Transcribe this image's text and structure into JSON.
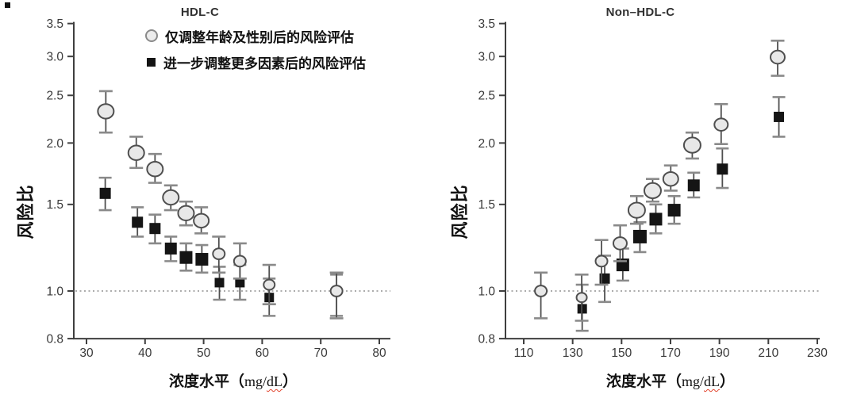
{
  "figure": {
    "background": "#ffffff",
    "accent_wavy_underline_color": "#e2442e"
  },
  "axes": {
    "y_label": "风险比",
    "x_caption_cjk": "浓度水平（",
    "x_caption_latin": "mg/",
    "x_caption_wavy": "dL",
    "x_caption_suffix": "）"
  },
  "legend": {
    "items": [
      {
        "marker": "circle",
        "label": "仅调整年龄及性别后的风险评估"
      },
      {
        "marker": "square",
        "label": "进一步调整更多因素后的风险评估"
      }
    ]
  },
  "chart_data": [
    {
      "type": "scatter",
      "title": "HDL-C",
      "xlabel": "浓度水平（mg/dL）",
      "ylabel": "风险比",
      "y_scale": "log",
      "x_ticks": [
        30,
        40,
        50,
        60,
        70,
        80
      ],
      "y_ticks": [
        3.5,
        3.0,
        2.5,
        2.0,
        1.5,
        1.0,
        0.8
      ],
      "xlim": [
        28,
        82
      ],
      "ylim": [
        0.8,
        3.5
      ],
      "ref_line": 1.0,
      "legend_position": "top-left-inside",
      "grid": false,
      "series": [
        {
          "name": "仅调整年龄及性别后的风险评估",
          "marker": "circle",
          "fill": "#e8e8e8",
          "stroke": "#4f4f4f",
          "points": [
            {
              "x": 33.3,
              "y": 2.32,
              "lo": 2.1,
              "hi": 2.55,
              "size": 20
            },
            {
              "x": 38.5,
              "y": 1.91,
              "lo": 1.78,
              "hi": 2.06,
              "size": 20
            },
            {
              "x": 41.7,
              "y": 1.77,
              "lo": 1.66,
              "hi": 1.9,
              "size": 20
            },
            {
              "x": 44.4,
              "y": 1.55,
              "lo": 1.46,
              "hi": 1.64,
              "size": 20
            },
            {
              "x": 47.0,
              "y": 1.44,
              "lo": 1.36,
              "hi": 1.52,
              "size": 20
            },
            {
              "x": 49.6,
              "y": 1.39,
              "lo": 1.31,
              "hi": 1.48,
              "size": 19
            },
            {
              "x": 52.6,
              "y": 1.19,
              "lo": 1.09,
              "hi": 1.29,
              "size": 15
            },
            {
              "x": 56.2,
              "y": 1.15,
              "lo": 1.06,
              "hi": 1.25,
              "size": 15
            },
            {
              "x": 61.2,
              "y": 1.03,
              "lo": 0.94,
              "hi": 1.13,
              "size": 14
            },
            {
              "x": 72.7,
              "y": 1.0,
              "lo": 0.88,
              "hi": 1.09,
              "size": 15
            }
          ]
        },
        {
          "name": "进一步调整更多因素后的风险评估",
          "marker": "square",
          "fill": "#151515",
          "stroke": "#151515",
          "points": [
            {
              "x": 33.2,
              "y": 1.58,
              "lo": 1.46,
              "hi": 1.7,
              "size": 14
            },
            {
              "x": 38.7,
              "y": 1.38,
              "lo": 1.29,
              "hi": 1.48,
              "size": 14
            },
            {
              "x": 41.7,
              "y": 1.34,
              "lo": 1.25,
              "hi": 1.43,
              "size": 14
            },
            {
              "x": 44.4,
              "y": 1.22,
              "lo": 1.15,
              "hi": 1.29,
              "size": 15
            },
            {
              "x": 47.0,
              "y": 1.17,
              "lo": 1.1,
              "hi": 1.25,
              "size": 16
            },
            {
              "x": 49.7,
              "y": 1.16,
              "lo": 1.09,
              "hi": 1.24,
              "size": 16
            },
            {
              "x": 52.7,
              "y": 1.04,
              "lo": 0.96,
              "hi": 1.12,
              "size": 12
            },
            {
              "x": 56.2,
              "y": 1.04,
              "lo": 0.96,
              "hi": 1.13,
              "size": 12
            },
            {
              "x": 61.2,
              "y": 0.97,
              "lo": 0.89,
              "hi": 1.06,
              "size": 12
            },
            {
              "x": 72.7,
              "y": 1.0,
              "lo": 0.89,
              "hi": 1.08,
              "size": 9
            }
          ]
        }
      ]
    },
    {
      "type": "scatter",
      "title": "Non–HDL-C",
      "xlabel": "浓度水平（mg/dL）",
      "ylabel": "风险比",
      "y_scale": "log",
      "x_ticks": [
        110,
        130,
        150,
        170,
        190,
        210,
        230
      ],
      "y_ticks": [
        3.5,
        3.0,
        2.5,
        2.0,
        1.5,
        1.0,
        0.8
      ],
      "xlim": [
        105,
        235
      ],
      "ylim": [
        0.8,
        3.5
      ],
      "ref_line": 1.0,
      "legend_position": "none",
      "grid": false,
      "series": [
        {
          "name": "仅调整年龄及性别后的风险评估",
          "marker": "circle",
          "fill": "#e8e8e8",
          "stroke": "#4f4f4f",
          "points": [
            {
              "x": 117.0,
              "y": 1.0,
              "lo": 0.88,
              "hi": 1.09,
              "size": 15
            },
            {
              "x": 133.7,
              "y": 0.97,
              "lo": 0.87,
              "hi": 1.08,
              "size": 13
            },
            {
              "x": 141.8,
              "y": 1.15,
              "lo": 1.03,
              "hi": 1.27,
              "size": 15
            },
            {
              "x": 149.4,
              "y": 1.25,
              "lo": 1.15,
              "hi": 1.36,
              "size": 17
            },
            {
              "x": 156.2,
              "y": 1.46,
              "lo": 1.37,
              "hi": 1.56,
              "size": 21
            },
            {
              "x": 162.7,
              "y": 1.6,
              "lo": 1.52,
              "hi": 1.69,
              "size": 21
            },
            {
              "x": 170.1,
              "y": 1.69,
              "lo": 1.6,
              "hi": 1.8,
              "size": 19
            },
            {
              "x": 178.9,
              "y": 1.98,
              "lo": 1.86,
              "hi": 2.1,
              "size": 21
            },
            {
              "x": 190.7,
              "y": 2.18,
              "lo": 1.99,
              "hi": 2.4,
              "size": 17
            },
            {
              "x": 213.8,
              "y": 2.99,
              "lo": 2.74,
              "hi": 3.23,
              "size": 18
            }
          ]
        },
        {
          "name": "进一步调整更多因素后的风险评估",
          "marker": "square",
          "fill": "#151515",
          "stroke": "#151515",
          "points": [
            {
              "x": 133.9,
              "y": 0.92,
              "lo": 0.83,
              "hi": 1.03,
              "size": 12
            },
            {
              "x": 143.1,
              "y": 1.06,
              "lo": 0.95,
              "hi": 1.18,
              "size": 13
            },
            {
              "x": 150.5,
              "y": 1.13,
              "lo": 1.05,
              "hi": 1.22,
              "size": 16
            },
            {
              "x": 157.5,
              "y": 1.29,
              "lo": 1.2,
              "hi": 1.38,
              "size": 17
            },
            {
              "x": 164.0,
              "y": 1.4,
              "lo": 1.31,
              "hi": 1.5,
              "size": 16
            },
            {
              "x": 171.5,
              "y": 1.46,
              "lo": 1.37,
              "hi": 1.56,
              "size": 16
            },
            {
              "x": 179.5,
              "y": 1.64,
              "lo": 1.55,
              "hi": 1.74,
              "size": 15
            },
            {
              "x": 191.2,
              "y": 1.77,
              "lo": 1.62,
              "hi": 1.95,
              "size": 14
            },
            {
              "x": 214.3,
              "y": 2.26,
              "lo": 2.06,
              "hi": 2.48,
              "size": 13
            }
          ]
        }
      ]
    }
  ]
}
